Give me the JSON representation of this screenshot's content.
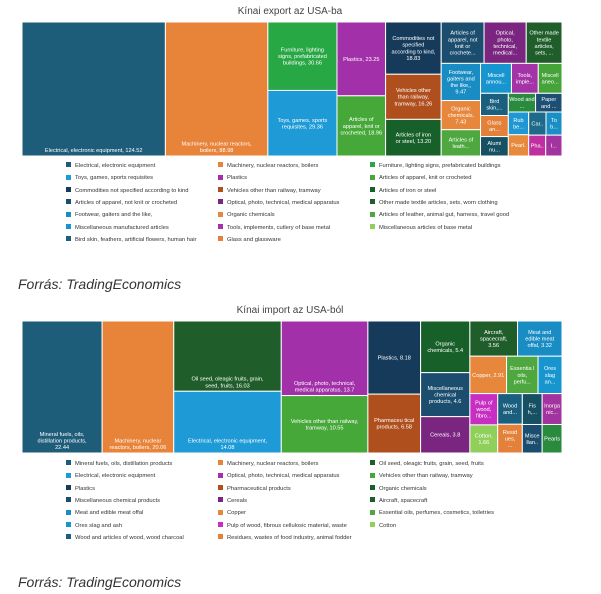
{
  "panels": [
    {
      "title": "Kínai export az USA-ba",
      "source": "Forrás: TradingEconomics"
    },
    {
      "title": "Kínai import az USA-ból",
      "source": "Forrás: TradingEconomics"
    }
  ],
  "chart_data": [
    {
      "type": "treemap",
      "title": "Kínai export az USA-ba",
      "unit": "USD billion",
      "items": [
        {
          "name": "Electrical, electronic equipment",
          "value": 124.52,
          "label": "Electrical, electronic equipment, 124.52",
          "color": "#1d5d7a"
        },
        {
          "name": "Machinery, nuclear reactors, boilers",
          "value": 88.98,
          "label": "Machinery, nuclear reactors, boilers, 88.98",
          "color": "#e8833a"
        },
        {
          "name": "Furniture, lighting signs, prefabricated buildings",
          "value": 30.66,
          "label": "Furniture, lighting signs, prefabricated buildings, 30.66",
          "color": "#28a745"
        },
        {
          "name": "Toys, games, sports requisites",
          "value": 29.36,
          "label": "Toys, games, sports requisites, 29.36",
          "color": "#1e9ad6"
        },
        {
          "name": "Plastics",
          "value": 23.25,
          "label": "Plastics, 23.25",
          "color": "#a230a8"
        },
        {
          "name": "Articles of apparel, knit or crocheted",
          "value": 18.96,
          "label": "Articles of apparel, knit or crocheted, 18.96",
          "color": "#47a83a"
        },
        {
          "name": "Commodities not specified according to kind",
          "value": 18.83,
          "label": "Commodities not specified according to kind, 18.83",
          "color": "#153a5a"
        },
        {
          "name": "Vehicles other than railway, tramway",
          "value": 16.26,
          "label": "Vehicles other than railway, tramway, 16.26",
          "color": "#b04f1e"
        },
        {
          "name": "Articles of iron or steel",
          "value": 13.2,
          "label": "Articles of iron or steel, 13.20",
          "color": "#18602a"
        },
        {
          "name": "Articles of apparel, not knit or crocheted",
          "value": 11.5,
          "label": "Articles of apparel, not knit or crochete...",
          "color": "#1b4d6e"
        },
        {
          "name": "Optical, photo, technical, medical apparatus",
          "value": 11.3,
          "label": "Optical, photo, technical, medical...",
          "color": "#7a2580"
        },
        {
          "name": "Other made textile articles, sets, worn clothing",
          "value": 9.6,
          "label": "Other made textile articles, sets, ...",
          "color": "#1f5e2a"
        },
        {
          "name": "Footwear, gaiters and the like",
          "value": 9.47,
          "label": "Footwear, gaiters and the like,, 9.47",
          "color": "#1a8cc4"
        },
        {
          "name": "Organic chemicals",
          "value": 7.43,
          "label": "Organic chemicals, 7.43",
          "color": "#e6873c"
        },
        {
          "name": "Articles of leather, animal gut, harness, travel good",
          "value": 6.7,
          "label": "Articles of leath...",
          "color": "#4ea83f"
        },
        {
          "name": "Miscellaneous manufactured articles",
          "value": 6.0,
          "label": "Miscell annou...",
          "color": "#1795cf"
        },
        {
          "name": "Tools, implements, cutlery of base metal",
          "value": 5.2,
          "label": "Tools, imple...",
          "color": "#a433a8"
        },
        {
          "name": "Miscellaneous articles of base metal",
          "value": 4.6,
          "label": "Miscell aneo...",
          "color": "#46a33a"
        },
        {
          "name": "Bird skin, feathers, artificial flowers, human hair",
          "value": 4.0,
          "label": "Bird skin,...",
          "color": "#1b5f7e"
        },
        {
          "name": "Glass and glassware",
          "value": 3.8,
          "label": "Glass an...",
          "color": "#e3813a"
        },
        {
          "name": "Aluminium",
          "value": 3.5,
          "label": "Alumi nu...",
          "color": "#155063"
        },
        {
          "name": "Wood",
          "value": 3.3,
          "label": "Wood and ...",
          "color": "#2a8a3d"
        },
        {
          "name": "Paper and paperboard",
          "value": 3.2,
          "label": "Paper and ...",
          "color": "#1c4f73"
        },
        {
          "name": "Rubber",
          "value": 3.0,
          "label": "Rub be...",
          "color": "#1e97d2"
        },
        {
          "name": "Pearls",
          "value": 2.8,
          "label": "Pearl...",
          "color": "#e78a3d"
        },
        {
          "name": "Carpets",
          "value": 2.6,
          "label": "Car...",
          "color": "#1d6a8a"
        },
        {
          "name": "Toys and headgear",
          "value": 2.4,
          "label": "To b...",
          "color": "#1a8fc6"
        },
        {
          "name": "Pharmaceutical products",
          "value": 2.3,
          "label": "Pha...",
          "color": "#c02fa0"
        },
        {
          "name": "Inorganic chemicals",
          "value": 2.2,
          "label": "I...",
          "color": "#a2349f"
        }
      ]
    },
    {
      "type": "treemap",
      "title": "Kínai import az USA-ból",
      "unit": "USD billion",
      "items": [
        {
          "name": "Mineral fuels, oils, distillation products",
          "value": 22.44,
          "label": "Mineral fuels, oils, distillation products, 22.44",
          "color": "#1d5d7a"
        },
        {
          "name": "Machinery, nuclear reactors, boilers",
          "value": 20.06,
          "label": "Machinery, nuclear reactors, boilers, 20.06",
          "color": "#e8833a"
        },
        {
          "name": "Oil seed, oleagic fruits, grain, seed, fruits",
          "value": 16.03,
          "label": "Oil seed, oleagic fruits, grain, seed, fruits, 16.03",
          "color": "#1f5e2a"
        },
        {
          "name": "Electrical, electronic equipment",
          "value": 14.08,
          "label": "Electrical, electronic equipment, 14.08",
          "color": "#1e9ad6"
        },
        {
          "name": "Optical, photo, technical, medical apparatus",
          "value": 13.7,
          "label": "Optical, photo, technical, medical apparatus, 13.7",
          "color": "#a230a8"
        },
        {
          "name": "Vehicles other than railway, tramway",
          "value": 10.55,
          "label": "Vehicles other than railway, tramway, 10.55",
          "color": "#47a83a"
        },
        {
          "name": "Plastics",
          "value": 8.18,
          "label": "Plastics, 8.18",
          "color": "#153a5a"
        },
        {
          "name": "Pharmaceutical products",
          "value": 6.58,
          "label": "Pharmaceu tical products, 6.58",
          "color": "#b04f1e"
        },
        {
          "name": "Organic chemicals",
          "value": 5.4,
          "label": "Organic chemicals, 5.4",
          "color": "#18602a"
        },
        {
          "name": "Miscellaneous chemical products",
          "value": 4.6,
          "label": "Miscellaneous chemical products, 4.6",
          "color": "#1b4d6e"
        },
        {
          "name": "Cereals",
          "value": 3.8,
          "label": "Cereals, 3.8",
          "color": "#7a2580"
        },
        {
          "name": "Aircraft, spacecraft",
          "value": 3.56,
          "label": "Aircraft, spacecraft, 3.56",
          "color": "#1f5e2a"
        },
        {
          "name": "Meat and edible meat offal",
          "value": 3.32,
          "label": "Meat and edible meat offal, 3.32",
          "color": "#1a8cc4"
        },
        {
          "name": "Copper",
          "value": 2.91,
          "label": "Copper, 2.91",
          "color": "#e6873c"
        },
        {
          "name": "Essential oils, perfumes, cosmetics, toiletries",
          "value": 2.5,
          "label": "Essentia l oils, perfu...",
          "color": "#4ea83f"
        },
        {
          "name": "Cotton",
          "value": 1.66,
          "label": "Cotton, 1.66",
          "color": "#8fcf5a"
        },
        {
          "name": "Ores slag and ash",
          "value": 1.9,
          "label": "Ores slag an...",
          "color": "#1795cf"
        },
        {
          "name": "Pulp of wood, fibrous cellulosic material, waste",
          "value": 1.85,
          "label": "Pulp of wood, fibro...",
          "color": "#c72fc2"
        },
        {
          "name": "Wood and articles of wood, wood charcoal",
          "value": 1.6,
          "label": "Wood and...",
          "color": "#1b5f7e"
        },
        {
          "name": "Residues, wastes of food industry, animal fodder",
          "value": 1.5,
          "label": "Resid ues, ...",
          "color": "#e3813a"
        },
        {
          "name": "Fish",
          "value": 1.3,
          "label": "Fis h,...",
          "color": "#155063"
        },
        {
          "name": "Inorganic chemicals",
          "value": 1.3,
          "label": "Inorga nic...",
          "color": "#a2349f"
        },
        {
          "name": "Miscellaneous",
          "value": 1.2,
          "label": "Misce llan...",
          "color": "#1b4d6e"
        },
        {
          "name": "Pearls",
          "value": 1.2,
          "label": "Pearls...",
          "color": "#2a8a3d"
        }
      ]
    }
  ],
  "legends": [
    [
      {
        "label": "Electrical, electronic equipment",
        "color": "#1d5d7a"
      },
      {
        "label": "Machinery, nuclear reactors, boilers",
        "color": "#e8833a"
      },
      {
        "label": "Furniture, lighting signs, prefabricated buildings",
        "color": "#28a745"
      },
      {
        "label": "Toys, games, sports requisites",
        "color": "#1e9ad6"
      },
      {
        "label": "Plastics",
        "color": "#a230a8"
      },
      {
        "label": "Articles of apparel, knit or crocheted",
        "color": "#47a83a"
      },
      {
        "label": "Commodities not specified according to kind",
        "color": "#153a5a"
      },
      {
        "label": "Vehicles other than railway, tramway",
        "color": "#b04f1e"
      },
      {
        "label": "Articles of iron or steel",
        "color": "#18602a"
      },
      {
        "label": "Articles of apparel, not knit or crocheted",
        "color": "#1b4d6e"
      },
      {
        "label": "Optical, photo, technical, medical apparatus",
        "color": "#7a2580"
      },
      {
        "label": "Other made textile articles, sets, worn clothing",
        "color": "#1f5e2a"
      },
      {
        "label": "Footwear, gaiters and the like,",
        "color": "#1a8cc4"
      },
      {
        "label": "Organic chemicals",
        "color": "#e6873c"
      },
      {
        "label": "Articles of leather, animal gut, harness, travel good",
        "color": "#4ea83f"
      },
      {
        "label": "Miscellaneous manufactured articles",
        "color": "#1795cf"
      },
      {
        "label": "Tools, implements, cutlery of base metal",
        "color": "#a433a8"
      },
      {
        "label": "Miscellaneous articles of base metal",
        "color": "#8fcf5a"
      },
      {
        "label": "Bird skin, feathers, artificial flowers, human hair",
        "color": "#1b5f7e"
      },
      {
        "label": "Glass and glassware",
        "color": "#e3813a"
      }
    ],
    [
      {
        "label": "Mineral fuels, oils, distillation products",
        "color": "#1d5d7a"
      },
      {
        "label": "Machinery, nuclear reactors, boilers",
        "color": "#e8833a"
      },
      {
        "label": "Oil seed, oleagic fruits, grain, seed, fruits",
        "color": "#1f5e2a"
      },
      {
        "label": "Electrical, electronic equipment",
        "color": "#1e9ad6"
      },
      {
        "label": "Optical, photo, technical, medical apparatus",
        "color": "#a230a8"
      },
      {
        "label": "Vehicles other than railway, tramway",
        "color": "#47a83a"
      },
      {
        "label": "Plastics",
        "color": "#153a5a"
      },
      {
        "label": "Pharmaceutical products",
        "color": "#b04f1e"
      },
      {
        "label": "Organic chemicals",
        "color": "#18602a"
      },
      {
        "label": "Miscellaneous chemical products",
        "color": "#1b4d6e"
      },
      {
        "label": "Cereals",
        "color": "#7a2580"
      },
      {
        "label": "Aircraft, spacecraft",
        "color": "#1f5e2a"
      },
      {
        "label": "Meat and edible meat offal",
        "color": "#1a8cc4"
      },
      {
        "label": "Copper",
        "color": "#e6873c"
      },
      {
        "label": "Essential oils, perfumes, cosmetics, toiletries",
        "color": "#4ea83f"
      },
      {
        "label": "Ores slag and ash",
        "color": "#1795cf"
      },
      {
        "label": "Pulp of wood, fibrous cellulosic material, waste",
        "color": "#c72fc2"
      },
      {
        "label": "Cotton",
        "color": "#8fcf5a"
      },
      {
        "label": "Wood and articles of wood, wood charcoal",
        "color": "#1b5f7e"
      },
      {
        "label": "Residues, wastes of food industry, animal fodder",
        "color": "#e3813a"
      }
    ]
  ]
}
